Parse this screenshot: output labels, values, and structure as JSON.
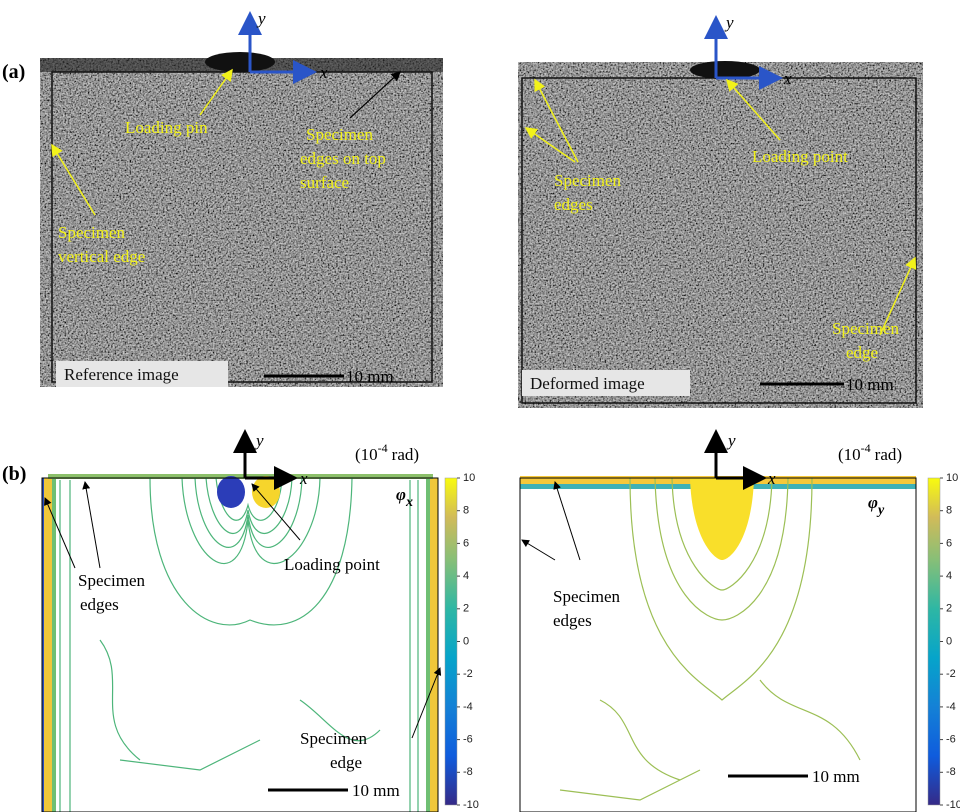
{
  "panel_a": {
    "label": "(a)",
    "reference": {
      "axis_y": "y",
      "axis_x": "x",
      "loading_pin": "Loading pin",
      "top_edges": [
        "Specimen",
        "edges on top",
        "surface"
      ],
      "vertical_edge": [
        "Specimen",
        "vertical edge"
      ],
      "caption": "Reference image",
      "scale_bar": "10 mm"
    },
    "deformed": {
      "axis_y": "y",
      "axis_x": "x",
      "edges": [
        "Specimen",
        "edges"
      ],
      "loading_point": "Loading point",
      "edge": [
        "Specimen",
        "edge"
      ],
      "caption": "Deformed image",
      "scale_bar": "10 mm"
    }
  },
  "panel_b": {
    "label": "(b)",
    "phi_x": {
      "axis_y": "y",
      "axis_x": "x",
      "unit": {
        "base": "(10",
        "exponent": "-4",
        "suffix": "rad)"
      },
      "symbol": "φ",
      "subscript": "x",
      "edges": [
        "Specimen",
        "edges"
      ],
      "loading_point": "Loading point",
      "edge": [
        "Specimen",
        "edge"
      ],
      "scale_bar": "10 mm",
      "colorbar": {
        "lim": [
          -10,
          10
        ],
        "ticks": [
          10,
          8,
          6,
          4,
          2,
          0,
          -2,
          -4,
          -6,
          -8,
          -10
        ]
      }
    },
    "phi_y": {
      "axis_y": "y",
      "axis_x": "x",
      "unit": {
        "base": "(10",
        "exponent": "-4",
        "suffix": "rad)"
      },
      "symbol": "φ",
      "subscript": "y",
      "edges": [
        "Specimen",
        "edges"
      ],
      "scale_bar": "10 mm",
      "colorbar": {
        "lim": [
          -10,
          10
        ],
        "ticks": [
          10,
          8,
          6,
          4,
          2,
          0,
          -2,
          -4,
          -6,
          -8,
          -10
        ]
      }
    }
  }
}
